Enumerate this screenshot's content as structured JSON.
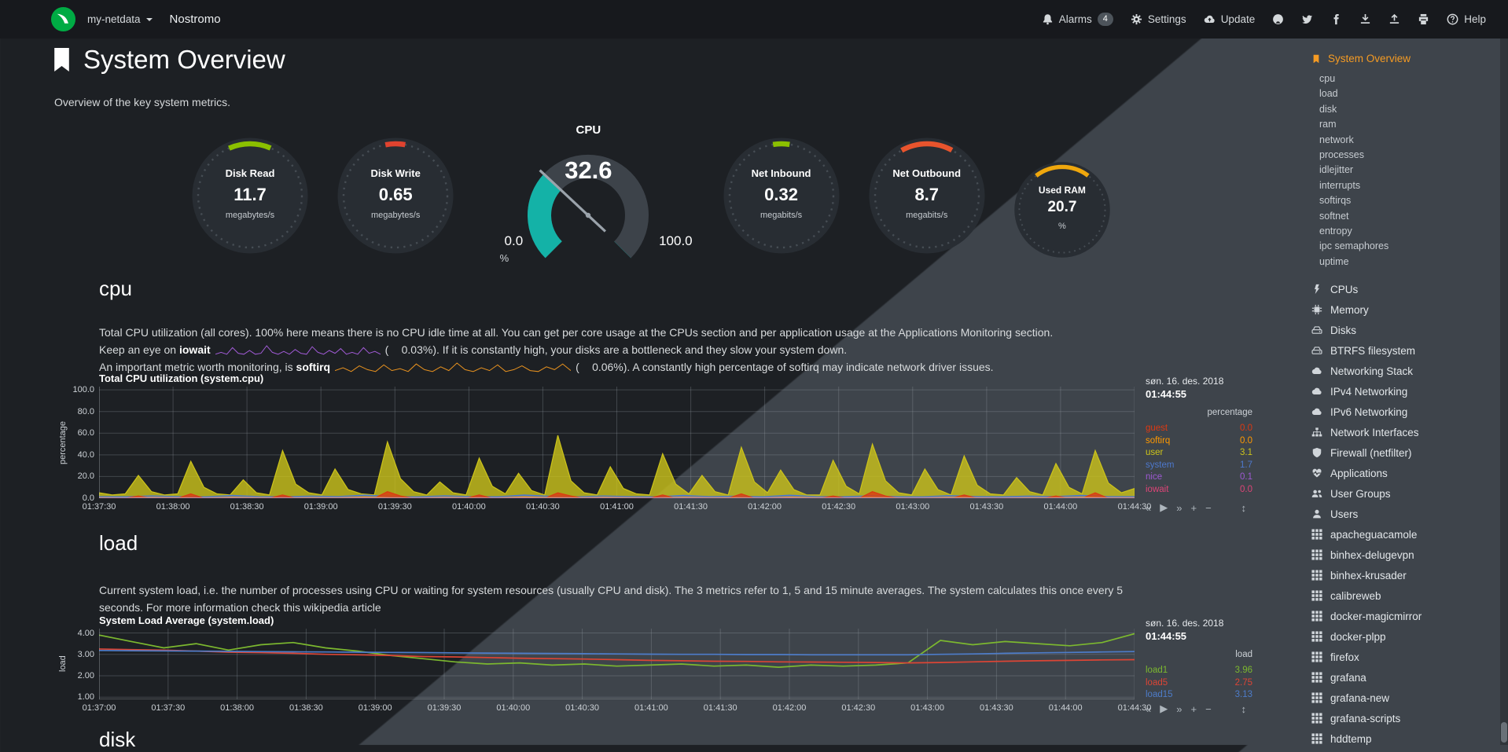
{
  "navbar": {
    "host": "my-netdata",
    "brand": "Nostromo",
    "alarms": {
      "label": "Alarms",
      "badge": "4"
    },
    "settings_label": "Settings",
    "update_label": "Update",
    "help_label": "Help",
    "icon_buttons": [
      "github",
      "twitter",
      "facebook",
      "download",
      "upload",
      "print"
    ]
  },
  "page": {
    "title": "System Overview",
    "subtitle": "Overview of the key system metrics."
  },
  "gauges": {
    "disk_read": {
      "title": "Disk Read",
      "value": "11.7",
      "unit": "megabytes/s",
      "color": "#8bc000",
      "span": 13
    },
    "disk_write": {
      "title": "Disk Write",
      "value": "0.65",
      "unit": "megabytes/s",
      "color": "#e0432f",
      "span": 6
    },
    "cpu": {
      "title": "CPU",
      "value": "32.6",
      "min": "0.0",
      "max": "100.0",
      "unit": "%",
      "percent": 32.6,
      "color": "#14b2a7"
    },
    "net_inbound": {
      "title": "Net Inbound",
      "value": "0.32",
      "unit": "megabits/s",
      "color": "#8bc000",
      "span": 5
    },
    "net_outbound": {
      "title": "Net Outbound",
      "value": "8.7",
      "unit": "megabits/s",
      "color": "#e8542d",
      "span": 16
    },
    "used_ram": {
      "title": "Used RAM",
      "value": "20.7",
      "unit": "%",
      "color": "#efa70d",
      "span": 20.7
    }
  },
  "cpu_section": {
    "heading": "cpu",
    "para1": "Total CPU utilization (all cores). 100% here means there is no CPU idle time at all. You can get per core usage at the CPUs section and per application usage at the Applications Monitoring section.",
    "line2": {
      "pre": "Keep an eye on ",
      "keyword": "iowait",
      "open_paren": "(",
      "value": "0.03%",
      "post": "). If it is constantly high, your disks are a bottleneck and they slow your system down."
    },
    "line3": {
      "pre": "An important metric worth monitoring, is ",
      "keyword": "softirq",
      "open_paren": "(",
      "value": "0.06%",
      "post": "). A constantly high percentage of softirq may indicate network driver issues."
    },
    "iowait_spark": [
      0.1,
      0.3,
      0.1,
      0.8,
      0.2,
      0.1,
      0.5,
      0.1,
      0.2,
      1.0,
      0.3,
      0.1,
      0.4,
      0.1,
      0.6,
      0.2,
      0.1,
      0.9,
      0.3,
      0.1,
      0.5,
      0.2,
      0.7,
      0.1,
      0.3,
      0.1,
      0.8,
      0.2,
      0.4,
      0.1
    ],
    "softirq_spark": [
      0.2,
      0.5,
      0.1,
      0.7,
      0.3,
      0.1,
      0.8,
      0.2,
      0.4,
      0.1,
      0.9,
      0.3,
      0.1,
      0.6,
      0.2,
      1.0,
      0.3,
      0.1,
      0.5,
      0.2,
      0.8,
      0.1,
      0.3,
      0.7,
      0.2,
      0.1,
      0.6,
      0.3,
      0.9,
      0.2
    ],
    "iowait_spark_color": "#a05ad5",
    "softirq_spark_color": "#e8921f"
  },
  "load_section": {
    "heading": "load",
    "para1": "Current system load, i.e. the number of processes using CPU or waiting for system resources (usually CPU and disk). The 3 metrics refer to 1, 5 and 15 minute averages. The system calculates this once every 5 seconds. For more information check this wikipedia article"
  },
  "disk_section": {
    "heading": "disk"
  },
  "chart_toolbar": {
    "pan_left": "«",
    "play": "▶",
    "pan_right": "»",
    "zoom_in": "+",
    "zoom_out": "−",
    "resize": "↕"
  },
  "chart_data": [
    {
      "type": "area",
      "title": "Total CPU utilization (system.cpu)",
      "ylabel": "percentage",
      "unit": "percentage",
      "legend_date": "søn. 16. des. 2018",
      "legend_time": "01:44:55",
      "ylim": [
        0,
        103
      ],
      "yticks": [
        0,
        20,
        40,
        60,
        80,
        100
      ],
      "ytick_labels": [
        "0.0",
        "20.0",
        "40.0",
        "60.0",
        "80.0",
        "100.0"
      ],
      "x_ticks": [
        "01:37:30",
        "01:38:00",
        "01:38:30",
        "01:39:00",
        "01:39:30",
        "01:40:00",
        "01:40:30",
        "01:41:00",
        "01:41:30",
        "01:42:00",
        "01:42:30",
        "01:43:00",
        "01:43:30",
        "01:44:00",
        "01:44:30"
      ],
      "grid": true,
      "legend_position": "right",
      "draw_order": [
        "user",
        "system",
        "guest",
        "softirq",
        "nice"
      ],
      "series": [
        {
          "name": "guest",
          "value": "0.0",
          "color": "#dc3912",
          "fill": true,
          "points": [
            0,
            0,
            0,
            2,
            0,
            0,
            0,
            4,
            0,
            0,
            0,
            0,
            0,
            0,
            3,
            0,
            0,
            0,
            0,
            0,
            0,
            0,
            6,
            2,
            0,
            0,
            0,
            0,
            0,
            3,
            0,
            0,
            0,
            0,
            0,
            5,
            2,
            0,
            0,
            0,
            0,
            0,
            0,
            3,
            0,
            0,
            0,
            0,
            0,
            4,
            0,
            0,
            0,
            0,
            0,
            0,
            2,
            0,
            0,
            6,
            2,
            0,
            0,
            0,
            0,
            0,
            3,
            0,
            0,
            0,
            0,
            0,
            0,
            2,
            0,
            0,
            5,
            0,
            0,
            0
          ]
        },
        {
          "name": "softirq",
          "value": "0.0",
          "color": "#ff9900",
          "fill": true,
          "points": [
            0.5,
            0.3,
            0.7,
            0.4,
            0.3,
            0.9,
            0.4,
            0.3,
            0.6,
            0.4,
            1.1,
            0.5,
            0.3,
            0.7,
            0.4,
            0.3,
            1.2,
            0.6,
            0.4,
            0.8,
            0.4,
            0.3,
            0.9,
            0.5,
            0.6,
            0.3,
            1.0,
            0.5,
            0.3,
            0.7,
            0.4,
            0.3,
            0.8,
            0.5,
            0.3,
            0.6,
            0.4,
            0.9,
            0.5,
            0.4
          ]
        },
        {
          "name": "user",
          "value": "3.1",
          "color": "#cdc41a",
          "fill": true,
          "points": [
            5,
            3,
            4,
            21,
            6,
            3,
            4,
            34,
            10,
            4,
            3,
            17,
            5,
            3,
            44,
            13,
            5,
            3,
            27,
            8,
            4,
            3,
            52,
            18,
            6,
            3,
            15,
            5,
            3,
            37,
            11,
            4,
            23,
            7,
            3,
            58,
            16,
            5,
            3,
            29,
            9,
            4,
            3,
            41,
            13,
            4,
            21,
            6,
            3,
            47,
            15,
            5,
            26,
            8,
            3,
            3,
            35,
            11,
            4,
            50,
            16,
            5,
            3,
            27,
            8,
            3,
            39,
            12,
            4,
            3,
            19,
            6,
            3,
            32,
            10,
            4,
            44,
            14,
            5,
            9
          ]
        },
        {
          "name": "system",
          "value": "1.7",
          "color": "#4d78cc",
          "fill": true,
          "points": [
            1.6,
            1.4,
            2.2,
            1.5,
            1.3,
            2.7,
            1.6,
            1.4,
            2.0,
            1.5,
            2.9,
            1.6,
            1.3,
            2.3,
            1.5,
            1.4,
            3.0,
            1.8,
            1.4,
            2.1,
            1.6,
            1.3,
            2.6,
            1.5,
            1.9,
            1.4,
            2.8,
            1.6,
            1.4,
            2.2,
            1.5,
            1.3,
            2.5,
            1.7,
            1.4,
            2.0,
            1.5,
            2.7,
            1.6,
            1.5
          ]
        },
        {
          "name": "nice",
          "value": "0.1",
          "color": "#9c59d1",
          "fill": true,
          "points": [
            0.15,
            0.1,
            0.2,
            0.1,
            0.1,
            0.25,
            0.12,
            0.1,
            0.18,
            0.1,
            0.3,
            0.14,
            0.1,
            0.2,
            0.12,
            0.1,
            0.28,
            0.15,
            0.1,
            0.2,
            0.12,
            0.1,
            0.24,
            0.13,
            0.16,
            0.1,
            0.26,
            0.14,
            0.1,
            0.2,
            0.12,
            0.1,
            0.22,
            0.14,
            0.1,
            0.18,
            0.11,
            0.24,
            0.13,
            0.12
          ]
        },
        {
          "name": "iowait",
          "value": "0.0",
          "color": "#dd4477",
          "fill": false,
          "points": [
            0,
            0
          ]
        }
      ]
    },
    {
      "type": "line",
      "title": "System Load Average (system.load)",
      "ylabel": "load",
      "unit": "load",
      "legend_date": "søn. 16. des. 2018",
      "legend_time": "01:44:55",
      "ylim": [
        0.9,
        4.2
      ],
      "yticks": [
        1,
        2,
        3,
        4
      ],
      "ytick_labels": [
        "1.00",
        "2.00",
        "3.00",
        "4.00"
      ],
      "x_ticks": [
        "01:37:00",
        "01:37:30",
        "01:38:00",
        "01:38:30",
        "01:39:00",
        "01:39:30",
        "01:40:00",
        "01:40:30",
        "01:41:00",
        "01:41:30",
        "01:42:00",
        "01:42:30",
        "01:43:00",
        "01:43:30",
        "01:44:00",
        "01:44:30"
      ],
      "grid": true,
      "legend_position": "right",
      "draw_order": [
        "load1",
        "load5",
        "load15"
      ],
      "series": [
        {
          "name": "load1",
          "value": "3.96",
          "color": "#7cb82f",
          "fill": false,
          "points": [
            3.9,
            3.6,
            3.3,
            3.5,
            3.2,
            3.45,
            3.55,
            3.3,
            3.15,
            2.95,
            2.8,
            2.65,
            2.55,
            2.6,
            2.5,
            2.55,
            2.45,
            2.5,
            2.55,
            2.45,
            2.5,
            2.4,
            2.5,
            2.45,
            2.5,
            2.6,
            3.65,
            3.45,
            3.6,
            3.5,
            3.4,
            3.55,
            3.96
          ]
        },
        {
          "name": "load5",
          "value": "2.75",
          "color": "#dc4535",
          "fill": false,
          "points": [
            3.25,
            3.22,
            3.2,
            3.15,
            3.1,
            3.08,
            3.05,
            3.0,
            2.98,
            2.95,
            2.9,
            2.88,
            2.85,
            2.82,
            2.8,
            2.78,
            2.75,
            2.72,
            2.7,
            2.68,
            2.67,
            2.65,
            2.64,
            2.63,
            2.62,
            2.6,
            2.62,
            2.65,
            2.68,
            2.7,
            2.72,
            2.74,
            2.75
          ]
        },
        {
          "name": "load15",
          "value": "3.13",
          "color": "#4d7cc9",
          "fill": false,
          "points": [
            3.18,
            3.17,
            3.16,
            3.15,
            3.14,
            3.13,
            3.12,
            3.11,
            3.1,
            3.09,
            3.08,
            3.07,
            3.06,
            3.05,
            3.04,
            3.03,
            3.02,
            3.01,
            3.0,
            3.0,
            2.99,
            2.99,
            2.98,
            2.98,
            2.98,
            2.98,
            3.0,
            3.02,
            3.05,
            3.07,
            3.09,
            3.11,
            3.13
          ]
        }
      ]
    }
  ],
  "sidebar": {
    "active_label": "System Overview",
    "active_color": "#f59b23",
    "sub_items": [
      "cpu",
      "load",
      "disk",
      "ram",
      "network",
      "processes",
      "idlejitter",
      "interrupts",
      "softirqs",
      "softnet",
      "entropy",
      "ipc semaphores",
      "uptime"
    ],
    "sections": [
      {
        "label": "CPUs",
        "icon": "bolt"
      },
      {
        "label": "Memory",
        "icon": "microchip"
      },
      {
        "label": "Disks",
        "icon": "hdd"
      },
      {
        "label": "BTRFS filesystem",
        "icon": "hdd"
      },
      {
        "label": "Networking Stack",
        "icon": "cloud"
      },
      {
        "label": "IPv4 Networking",
        "icon": "cloud"
      },
      {
        "label": "IPv6 Networking",
        "icon": "cloud"
      },
      {
        "label": "Network Interfaces",
        "icon": "network"
      },
      {
        "label": "Firewall (netfilter)",
        "icon": "shield"
      },
      {
        "label": "Applications",
        "icon": "heartbeat"
      },
      {
        "label": "User Groups",
        "icon": "users"
      },
      {
        "label": "Users",
        "icon": "user"
      }
    ],
    "apps": [
      "apacheguacamole",
      "binhex-delugevpn",
      "binhex-krusader",
      "calibreweb",
      "docker-magicmirror",
      "docker-plpp",
      "firefox",
      "grafana",
      "grafana-new",
      "grafana-scripts",
      "hddtemp"
    ]
  }
}
